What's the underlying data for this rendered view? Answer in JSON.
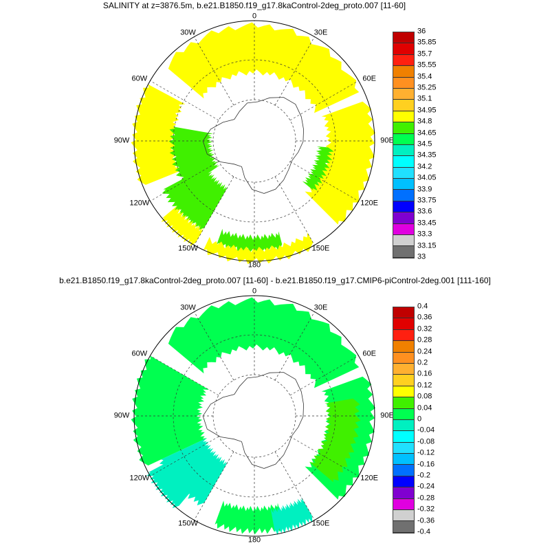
{
  "panels": [
    {
      "title": "SALINITY at z=3876.5m, b.e21.B1850.f19_g17.8kaControl-2deg_proto.007 [11-60]",
      "lon_labels": {
        "0": "0",
        "30E": "30E",
        "60E": "60E",
        "90E": "90E",
        "120E": "120E",
        "150E": "150E",
        "180": "180",
        "150W": "150W",
        "120W": "120W",
        "90W": "90W",
        "60W": "60W",
        "30W": "30W"
      },
      "colorbar_labels": [
        "36",
        "35.85",
        "35.7",
        "35.55",
        "35.4",
        "35.25",
        "35.1",
        "34.95",
        "34.8",
        "34.65",
        "34.5",
        "34.35",
        "34.2",
        "34.05",
        "33.9",
        "33.75",
        "33.6",
        "33.45",
        "33.3",
        "33.15",
        "33"
      ]
    },
    {
      "title": "b.e21.B1850.f19_g17.8kaControl-2deg_proto.007 [11-60] - b.e21.B1850.f19_g17.CMIP6-piControl-2deg.001 [111-160]",
      "lon_labels": {
        "0": "0",
        "30E": "30E",
        "60E": "60E",
        "90E": "90E",
        "120E": "120E",
        "150E": "150E",
        "180": "180",
        "150W": "150W",
        "120W": "120W",
        "90W": "90W",
        "60W": "60W",
        "30W": "30W"
      },
      "colorbar_labels": [
        "0.4",
        "0.36",
        "0.32",
        "0.28",
        "0.24",
        "0.2",
        "0.16",
        "0.12",
        "0.08",
        "0.04",
        "0",
        "-0.04",
        "-0.08",
        "-0.12",
        "-0.16",
        "-0.2",
        "-0.24",
        "-0.28",
        "-0.32",
        "-0.36",
        "-0.4"
      ]
    }
  ],
  "colorbar_colors": [
    "#c00000",
    "#e00000",
    "#ff2010",
    "#f08000",
    "#ff9020",
    "#ffb030",
    "#ffd020",
    "#ffff00",
    "#40f000",
    "#00ff50",
    "#00f0c0",
    "#00ffff",
    "#20e0ff",
    "#00c0ff",
    "#0070ff",
    "#0000ff",
    "#8000d0",
    "#e000e0",
    "#d0d0d0",
    "#707070"
  ]
}
